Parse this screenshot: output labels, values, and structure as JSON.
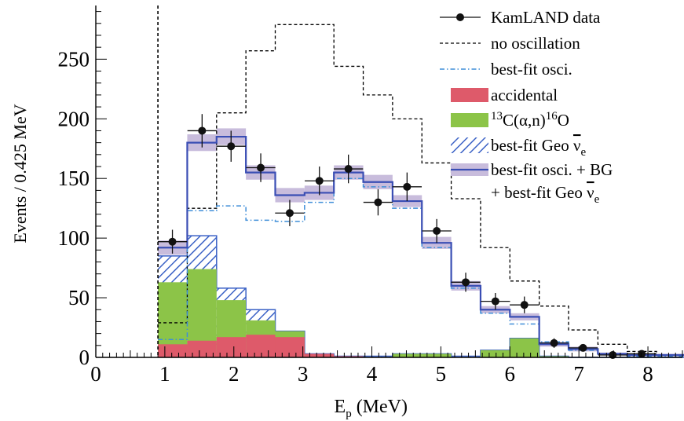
{
  "chart_data": {
    "type": "histogram",
    "xlabel_main": "E",
    "xlabel_sub": "p",
    "xlabel_rest": " (MeV)",
    "ylabel": "Events / 0.425 MeV",
    "xlim": [
      0,
      8.5
    ],
    "ylim": [
      0,
      295
    ],
    "x_ticks": [
      "0",
      "1",
      "2",
      "3",
      "4",
      "5",
      "6",
      "7",
      "8"
    ],
    "y_ticks": [
      "0",
      "50",
      "100",
      "150",
      "200",
      "250"
    ],
    "threshold_line_x": 0.9,
    "bin_edges": [
      0.9,
      1.325,
      1.75,
      2.175,
      2.6,
      3.025,
      3.45,
      3.875,
      4.3,
      4.725,
      5.15,
      5.575,
      6.0,
      6.425,
      6.85,
      7.275,
      7.7,
      8.125,
      8.55
    ],
    "colors": {
      "accidental": "#de5a6a",
      "c13": "#8cc448",
      "geo_hatch": "#3b62c6",
      "bestfit_osci": "#3f8ed8",
      "total_line": "#3a4eb4",
      "total_band": "#c8bcdc",
      "data": "#111111"
    },
    "series": [
      {
        "name": "KamLAND data",
        "style": "points-with-errorbars",
        "x": [
          1.11,
          1.54,
          1.96,
          2.39,
          2.81,
          3.24,
          3.66,
          4.09,
          4.51,
          4.94,
          5.36,
          5.79,
          6.21,
          6.64,
          7.06,
          7.49,
          7.91
        ],
        "y": [
          97,
          190,
          177,
          159,
          121,
          148,
          158,
          130,
          143,
          106,
          63,
          47,
          44,
          12,
          8,
          2,
          3
        ],
        "yerr": [
          10,
          14,
          13,
          12,
          11,
          12,
          12,
          11,
          12,
          10,
          8,
          7,
          7,
          4,
          3,
          2,
          2
        ]
      },
      {
        "name": "no oscillation",
        "style": "dashed-step",
        "values": [
          29,
          125,
          205,
          257,
          279,
          279,
          244,
          220,
          200,
          163,
          133,
          92,
          64,
          43,
          23,
          11,
          5,
          2
        ]
      },
      {
        "name": "best-fit osci.",
        "style": "dashdot-step",
        "values": [
          15,
          123,
          127,
          115,
          114,
          130,
          150,
          143,
          125,
          92,
          58,
          37,
          28,
          13,
          6,
          3,
          1,
          1
        ]
      },
      {
        "name": "accidental",
        "style": "filled",
        "values": [
          11,
          14,
          17,
          19,
          17,
          3,
          1,
          0,
          0,
          0,
          0,
          0,
          0,
          0,
          0,
          0,
          0,
          0
        ]
      },
      {
        "name": "13C(α,n)16O",
        "style": "filled",
        "values": [
          63,
          74,
          48,
          31,
          22,
          2,
          1,
          0,
          3,
          3,
          0,
          6,
          16,
          1,
          0,
          0,
          0,
          0
        ]
      },
      {
        "name": "best-fit Geo ν̄e",
        "style": "hatched",
        "values": [
          85,
          102,
          58,
          40,
          22,
          3,
          1,
          1,
          3,
          3,
          1,
          6,
          16,
          1,
          0,
          0,
          0,
          0
        ]
      },
      {
        "name": "best-fit osci. + BG + best-fit Geo ν̄e",
        "style": "solid-step-with-band",
        "values": [
          92,
          180,
          185,
          155,
          136,
          138,
          155,
          147,
          131,
          96,
          60,
          40,
          34,
          11,
          7,
          3,
          2,
          2
        ],
        "band_halfwidth": [
          6,
          7,
          7,
          6,
          6,
          6,
          6,
          6,
          5,
          5,
          4,
          3,
          3,
          2,
          2,
          1,
          1,
          1
        ]
      }
    ],
    "legend": {
      "placement": "top-right",
      "entries": [
        {
          "key": "data",
          "label": "KamLAND data"
        },
        {
          "key": "noosc",
          "label": "no oscillation"
        },
        {
          "key": "bestfit",
          "label": "best-fit osci."
        },
        {
          "key": "acc",
          "label": "accidental"
        },
        {
          "key": "c13",
          "label_parts": [
            "13",
            "C(α,n)",
            "16",
            "O"
          ]
        },
        {
          "key": "geo",
          "label_parts": [
            "best-fit Geo ",
            "ν",
            "e"
          ]
        },
        {
          "key": "total",
          "label": "best-fit osci. + BG"
        },
        {
          "key": "total2",
          "label_parts": [
            "+ best-fit Geo ",
            "ν",
            "e"
          ]
        }
      ]
    }
  }
}
